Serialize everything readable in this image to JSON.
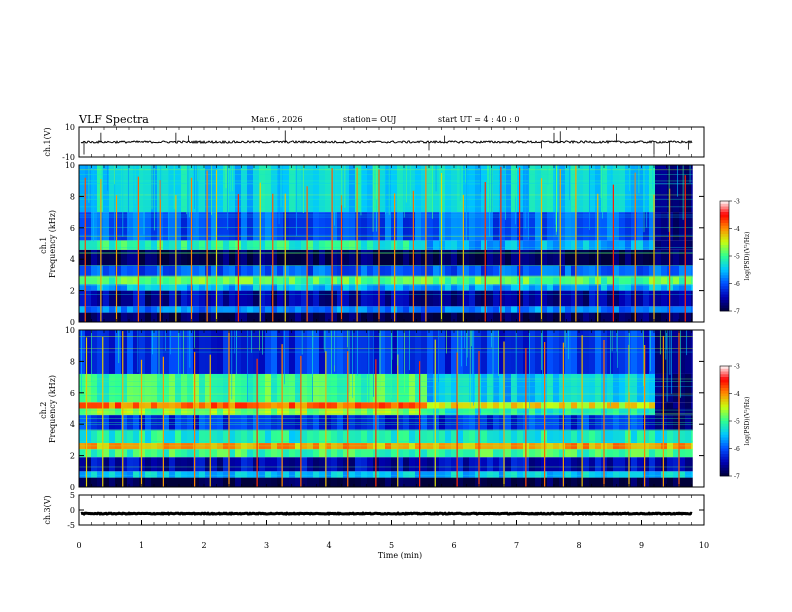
{
  "header": {
    "title": "VLF Spectra",
    "date": "Mar.6  , 2026",
    "station": "station= OUJ",
    "start_ut": "start  UT  =   4 : 40 : 0"
  },
  "colors": {
    "background": "#ffffff",
    "axis": "#000000",
    "colormap": [
      "#00003a",
      "#0000b4",
      "#0050ff",
      "#00c8ff",
      "#30ff90",
      "#c8ff10",
      "#ff8c00",
      "#ff0000",
      "#ffffff"
    ]
  },
  "chart_data": [
    {
      "type": "line",
      "panel": "ch1_waveform",
      "ylabel": "ch.1(V)",
      "ylim": [
        -10,
        10
      ],
      "yticks": [
        "10",
        "-10"
      ],
      "baseline_mean": 0,
      "noise_amplitude": 1.5,
      "spikes_min": [
        0.08,
        0.35,
        1.55,
        1.75,
        3.3,
        5.6,
        5.85,
        7.4,
        7.6,
        7.7,
        8.6,
        9.2,
        9.45,
        9.75
      ]
    },
    {
      "type": "heatmap",
      "panel": "ch1_spectrogram",
      "ylabel": "ch.1\nFrequency (kHz)",
      "ylabel_lines": [
        "ch.1",
        "Frequency  (kHz)"
      ],
      "xlim": [
        0,
        10
      ],
      "ylim": [
        0,
        10
      ],
      "data_end_min": 9.82,
      "yticks": [
        "0",
        "2",
        "4",
        "6",
        "8",
        "10"
      ],
      "colorbar": {
        "label": "log(PSD)(V²/Hz)",
        "range": [
          -7,
          -3
        ],
        "ticks": [
          "-3",
          "-4",
          "-5",
          "-6",
          "-7"
        ]
      },
      "bands": [
        {
          "khz": [
            0.0,
            0.6
          ],
          "level": -6.9
        },
        {
          "khz": [
            0.6,
            1.0
          ],
          "level": -5.8
        },
        {
          "khz": [
            1.0,
            2.0
          ],
          "level": -6.6
        },
        {
          "khz": [
            2.0,
            2.4
          ],
          "level": -5.6
        },
        {
          "khz": [
            2.4,
            2.9
          ],
          "level": -4.9
        },
        {
          "khz": [
            2.9,
            3.6
          ],
          "level": -6.0
        },
        {
          "khz": [
            3.6,
            4.6
          ],
          "level": -6.9
        },
        {
          "khz": [
            4.6,
            5.2
          ],
          "level": -5.1
        },
        {
          "khz": [
            5.2,
            7.0
          ],
          "level": -6.0
        },
        {
          "khz": [
            7.0,
            10.0
          ],
          "level": -5.4
        }
      ],
      "quiet_after_min": 9.15,
      "sferic_times_min": [
        0.1,
        0.35,
        0.6,
        0.95,
        1.3,
        1.55,
        1.8,
        2.05,
        2.2,
        2.55,
        2.9,
        3.1,
        3.3,
        3.65,
        4.05,
        4.2,
        4.45,
        4.8,
        5.05,
        5.35,
        5.55,
        5.8,
        6.15,
        6.5,
        6.75,
        7.05,
        7.4,
        7.7,
        7.95,
        8.3,
        8.55,
        8.9,
        9.2,
        9.45,
        9.7
      ]
    },
    {
      "type": "heatmap",
      "panel": "ch2_spectrogram",
      "ylabel": "ch.2\nFrequency (kHz)",
      "ylabel_lines": [
        "ch.2",
        "Frequency  (kHz)"
      ],
      "xlim": [
        0,
        10
      ],
      "ylim": [
        0,
        10
      ],
      "data_end_min": 9.82,
      "yticks": [
        "0",
        "2",
        "4",
        "6",
        "8",
        "10"
      ],
      "colorbar": {
        "label": "log(PSD)(V²/Hz)",
        "range": [
          -7,
          -3
        ],
        "ticks": [
          "-3",
          "-4",
          "-5",
          "-6",
          "-7"
        ]
      },
      "bands": [
        {
          "khz": [
            0.0,
            0.6
          ],
          "level": -7.0
        },
        {
          "khz": [
            0.6,
            1.0
          ],
          "level": -5.5
        },
        {
          "khz": [
            1.0,
            1.9
          ],
          "level": -6.5
        },
        {
          "khz": [
            1.9,
            2.4
          ],
          "level": -5.0
        },
        {
          "khz": [
            2.4,
            2.8
          ],
          "level": -4.1
        },
        {
          "khz": [
            2.8,
            3.6
          ],
          "level": -5.2
        },
        {
          "khz": [
            3.6,
            4.6
          ],
          "level": -6.2
        },
        {
          "khz": [
            4.6,
            5.0
          ],
          "level": -4.7
        },
        {
          "khz": [
            5.0,
            5.4
          ],
          "level": -3.9
        },
        {
          "khz": [
            5.4,
            7.2
          ],
          "level": -5.0
        },
        {
          "khz": [
            7.2,
            10.0
          ],
          "level": -6.2
        }
      ],
      "quiet_after_min": 9.15,
      "sferic_times_min": [
        0.12,
        0.38,
        0.7,
        1.0,
        1.35,
        1.85,
        2.1,
        2.4,
        2.85,
        3.25,
        3.55,
        3.95,
        4.3,
        4.75,
        5.1,
        5.45,
        5.7,
        6.05,
        6.4,
        6.8,
        7.15,
        7.45,
        7.75,
        8.05,
        8.4,
        8.8,
        9.05,
        9.35,
        9.6
      ]
    },
    {
      "type": "line",
      "panel": "ch3_waveform",
      "ylabel": "ch.3(V)",
      "ylim": [
        -5,
        5
      ],
      "yticks": [
        "5",
        "0",
        "-5"
      ],
      "baseline_mean": -1.2,
      "noise_amplitude": 0.3,
      "xlabel": "Time  (min)",
      "xticks": [
        "0",
        "1",
        "2",
        "3",
        "4",
        "5",
        "6",
        "7",
        "8",
        "9",
        "10"
      ]
    }
  ]
}
